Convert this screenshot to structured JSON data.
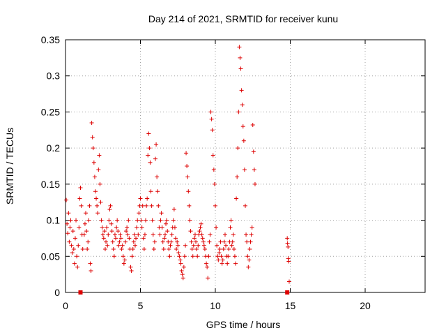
{
  "colors": {
    "series": "#dd0000",
    "grid": "#a0a0a0",
    "axis": "#000000"
  },
  "chart_data": {
    "type": "scatter",
    "title": "Day 214 of 2021, SRMTID for receiver kunu",
    "xlabel": "GPS time / hours",
    "ylabel": "SRMTID / TECUs",
    "xlim": [
      0,
      24
    ],
    "ylim": [
      0,
      0.35
    ],
    "grid": true,
    "marker": "+",
    "xticks": [
      0,
      5,
      10,
      15,
      20
    ],
    "xtick_labels": [
      "0",
      "5",
      "10",
      "15",
      "20"
    ],
    "yticks": [
      0,
      0.05,
      0.1,
      0.15,
      0.2,
      0.25,
      0.3,
      0.35
    ],
    "ytick_labels": [
      "0",
      "0.05",
      "0.1",
      "0.15",
      "0.2",
      "0.25",
      "0.3",
      "0.35"
    ],
    "series": [
      {
        "name": "SRMTID",
        "points": [
          [
            0.05,
            0.128
          ],
          [
            0.1,
            0.095
          ],
          [
            0.15,
            0.082
          ],
          [
            0.2,
            0.11
          ],
          [
            0.25,
            0.07
          ],
          [
            0.3,
            0.09
          ],
          [
            0.35,
            0.1
          ],
          [
            0.4,
            0.065
          ],
          [
            0.45,
            0.055
          ],
          [
            0.5,
            0.085
          ],
          [
            0.55,
            0.06
          ],
          [
            0.6,
            0.04
          ],
          [
            0.65,
            0.075
          ],
          [
            0.7,
            0.1
          ],
          [
            0.75,
            0.05
          ],
          [
            0.8,
            0.035
          ],
          [
            0.85,
            0.065
          ],
          [
            0.9,
            0.09
          ],
          [
            0.95,
            0.13
          ],
          [
            1.0,
            0.145
          ],
          [
            1.05,
            0.12
          ],
          [
            1.1,
            0.08
          ],
          [
            1.15,
            0.06
          ],
          [
            1.25,
            0.08
          ],
          [
            1.3,
            0.095
          ],
          [
            1.35,
            0.11
          ],
          [
            1.4,
            0.085
          ],
          [
            1.45,
            0.06
          ],
          [
            1.5,
            0.07
          ],
          [
            1.55,
            0.1
          ],
          [
            1.6,
            0.12
          ],
          [
            1.65,
            0.04
          ],
          [
            1.7,
            0.03
          ],
          [
            1.75,
            0.235
          ],
          [
            1.8,
            0.215
          ],
          [
            1.85,
            0.2
          ],
          [
            1.9,
            0.18
          ],
          [
            1.95,
            0.16
          ],
          [
            2.0,
            0.14
          ],
          [
            2.05,
            0.13
          ],
          [
            2.1,
            0.12
          ],
          [
            2.15,
            0.11
          ],
          [
            2.2,
            0.17
          ],
          [
            2.25,
            0.19
          ],
          [
            2.3,
            0.15
          ],
          [
            2.35,
            0.125
          ],
          [
            2.4,
            0.1
          ],
          [
            2.45,
            0.09
          ],
          [
            2.5,
            0.08
          ],
          [
            2.55,
            0.075
          ],
          [
            2.6,
            0.085
          ],
          [
            2.65,
            0.06
          ],
          [
            2.7,
            0.07
          ],
          [
            2.75,
            0.09
          ],
          [
            2.8,
            0.065
          ],
          [
            2.85,
            0.08
          ],
          [
            2.9,
            0.1
          ],
          [
            2.95,
            0.115
          ],
          [
            3.0,
            0.12
          ],
          [
            3.05,
            0.095
          ],
          [
            3.1,
            0.085
          ],
          [
            3.15,
            0.07
          ],
          [
            3.2,
            0.06
          ],
          [
            3.25,
            0.05
          ],
          [
            3.3,
            0.08
          ],
          [
            3.35,
            0.075
          ],
          [
            3.4,
            0.09
          ],
          [
            3.45,
            0.1
          ],
          [
            3.5,
            0.085
          ],
          [
            3.55,
            0.065
          ],
          [
            3.6,
            0.07
          ],
          [
            3.65,
            0.08
          ],
          [
            3.7,
            0.075
          ],
          [
            3.75,
            0.06
          ],
          [
            3.8,
            0.065
          ],
          [
            3.85,
            0.05
          ],
          [
            3.9,
            0.04
          ],
          [
            3.95,
            0.045
          ],
          [
            4.0,
            0.07
          ],
          [
            4.05,
            0.085
          ],
          [
            4.1,
            0.09
          ],
          [
            4.15,
            0.08
          ],
          [
            4.2,
            0.1
          ],
          [
            4.25,
            0.075
          ],
          [
            4.3,
            0.06
          ],
          [
            4.35,
            0.035
          ],
          [
            4.4,
            0.03
          ],
          [
            4.45,
            0.05
          ],
          [
            4.5,
            0.06
          ],
          [
            4.55,
            0.07
          ],
          [
            4.6,
            0.08
          ],
          [
            4.65,
            0.065
          ],
          [
            4.7,
            0.075
          ],
          [
            4.75,
            0.09
          ],
          [
            4.8,
            0.1
          ],
          [
            4.85,
            0.08
          ],
          [
            4.9,
            0.11
          ],
          [
            4.95,
            0.12
          ],
          [
            5.0,
            0.13
          ],
          [
            5.05,
            0.1
          ],
          [
            5.1,
            0.09
          ],
          [
            5.15,
            0.12
          ],
          [
            5.2,
            0.075
          ],
          [
            5.25,
            0.06
          ],
          [
            5.3,
            0.08
          ],
          [
            5.35,
            0.1
          ],
          [
            5.4,
            0.12
          ],
          [
            5.45,
            0.13
          ],
          [
            5.5,
            0.19
          ],
          [
            5.55,
            0.22
          ],
          [
            5.6,
            0.2
          ],
          [
            5.65,
            0.18
          ],
          [
            5.7,
            0.14
          ],
          [
            5.75,
            0.12
          ],
          [
            5.8,
            0.1
          ],
          [
            5.85,
            0.08
          ],
          [
            5.9,
            0.06
          ],
          [
            5.95,
            0.07
          ],
          [
            6.0,
            0.185
          ],
          [
            6.05,
            0.205
          ],
          [
            6.1,
            0.16
          ],
          [
            6.15,
            0.14
          ],
          [
            6.2,
            0.12
          ],
          [
            6.25,
            0.09
          ],
          [
            6.3,
            0.08
          ],
          [
            6.35,
            0.1
          ],
          [
            6.4,
            0.11
          ],
          [
            6.45,
            0.09
          ],
          [
            6.5,
            0.07
          ],
          [
            6.55,
            0.06
          ],
          [
            6.6,
            0.075
          ],
          [
            6.65,
            0.08
          ],
          [
            6.7,
            0.095
          ],
          [
            6.75,
            0.1
          ],
          [
            6.8,
            0.085
          ],
          [
            6.85,
            0.07
          ],
          [
            6.9,
            0.06
          ],
          [
            6.95,
            0.05
          ],
          [
            7.0,
            0.065
          ],
          [
            7.05,
            0.07
          ],
          [
            7.1,
            0.08
          ],
          [
            7.15,
            0.09
          ],
          [
            7.2,
            0.1
          ],
          [
            7.25,
            0.115
          ],
          [
            7.3,
            0.09
          ],
          [
            7.35,
            0.075
          ],
          [
            7.4,
            0.06
          ],
          [
            7.45,
            0.07
          ],
          [
            7.5,
            0.065
          ],
          [
            7.55,
            0.055
          ],
          [
            7.6,
            0.05
          ],
          [
            7.65,
            0.045
          ],
          [
            7.7,
            0.04
          ],
          [
            7.75,
            0.03
          ],
          [
            7.8,
            0.025
          ],
          [
            7.85,
            0.02
          ],
          [
            7.9,
            0.035
          ],
          [
            7.95,
            0.05
          ],
          [
            8.0,
            0.065
          ],
          [
            8.05,
            0.193
          ],
          [
            8.1,
            0.175
          ],
          [
            8.15,
            0.16
          ],
          [
            8.2,
            0.14
          ],
          [
            8.25,
            0.12
          ],
          [
            8.3,
            0.1
          ],
          [
            8.35,
            0.085
          ],
          [
            8.4,
            0.07
          ],
          [
            8.45,
            0.06
          ],
          [
            8.5,
            0.05
          ],
          [
            8.55,
            0.065
          ],
          [
            8.6,
            0.075
          ],
          [
            8.65,
            0.08
          ],
          [
            8.7,
            0.07
          ],
          [
            8.75,
            0.06
          ],
          [
            8.8,
            0.05
          ],
          [
            8.85,
            0.065
          ],
          [
            8.9,
            0.08
          ],
          [
            8.95,
            0.085
          ],
          [
            9.0,
            0.09
          ],
          [
            9.05,
            0.095
          ],
          [
            9.1,
            0.08
          ],
          [
            9.15,
            0.075
          ],
          [
            9.2,
            0.07
          ],
          [
            9.25,
            0.065
          ],
          [
            9.3,
            0.06
          ],
          [
            9.35,
            0.05
          ],
          [
            9.4,
            0.04
          ],
          [
            9.45,
            0.035
          ],
          [
            9.5,
            0.02
          ],
          [
            9.55,
            0.05
          ],
          [
            9.6,
            0.07
          ],
          [
            9.65,
            0.08
          ],
          [
            9.7,
            0.25
          ],
          [
            9.75,
            0.24
          ],
          [
            9.8,
            0.225
          ],
          [
            9.85,
            0.19
          ],
          [
            9.9,
            0.17
          ],
          [
            9.95,
            0.15
          ],
          [
            10.0,
            0.12
          ],
          [
            10.05,
            0.09
          ],
          [
            10.1,
            0.065
          ],
          [
            10.15,
            0.05
          ],
          [
            10.2,
            0.045
          ],
          [
            10.25,
            0.055
          ],
          [
            10.3,
            0.06
          ],
          [
            10.35,
            0.07
          ],
          [
            10.4,
            0.05
          ],
          [
            10.45,
            0.04
          ],
          [
            10.5,
            0.045
          ],
          [
            10.55,
            0.06
          ],
          [
            10.6,
            0.07
          ],
          [
            10.65,
            0.08
          ],
          [
            10.7,
            0.065
          ],
          [
            10.75,
            0.05
          ],
          [
            10.8,
            0.04
          ],
          [
            10.85,
            0.05
          ],
          [
            10.9,
            0.06
          ],
          [
            10.95,
            0.07
          ],
          [
            11.0,
            0.09
          ],
          [
            11.05,
            0.1
          ],
          [
            11.1,
            0.065
          ],
          [
            11.15,
            0.07
          ],
          [
            11.2,
            0.08
          ],
          [
            11.25,
            0.06
          ],
          [
            11.3,
            0.05
          ],
          [
            11.35,
            0.04
          ],
          [
            11.4,
            0.13
          ],
          [
            11.45,
            0.16
          ],
          [
            11.5,
            0.2
          ],
          [
            11.55,
            0.25
          ],
          [
            11.6,
            0.34
          ],
          [
            11.65,
            0.325
          ],
          [
            11.7,
            0.31
          ],
          [
            11.75,
            0.28
          ],
          [
            11.8,
            0.26
          ],
          [
            11.85,
            0.23
          ],
          [
            11.9,
            0.21
          ],
          [
            11.95,
            0.17
          ],
          [
            12.0,
            0.12
          ],
          [
            12.05,
            0.08
          ],
          [
            12.1,
            0.07
          ],
          [
            12.15,
            0.05
          ],
          [
            12.2,
            0.035
          ],
          [
            12.25,
            0.045
          ],
          [
            12.3,
            0.06
          ],
          [
            12.35,
            0.07
          ],
          [
            12.4,
            0.08
          ],
          [
            12.45,
            0.09
          ],
          [
            12.5,
            0.232
          ],
          [
            12.55,
            0.195
          ],
          [
            12.6,
            0.17
          ],
          [
            12.65,
            0.15
          ],
          [
            14.8,
            0.075
          ],
          [
            14.82,
            0.068
          ],
          [
            14.85,
            0.063
          ],
          [
            14.87,
            0.047
          ],
          [
            14.9,
            0.043
          ],
          [
            14.93,
            0.015
          ]
        ]
      }
    ],
    "gap_markers": [
      1.0,
      14.8
    ]
  }
}
